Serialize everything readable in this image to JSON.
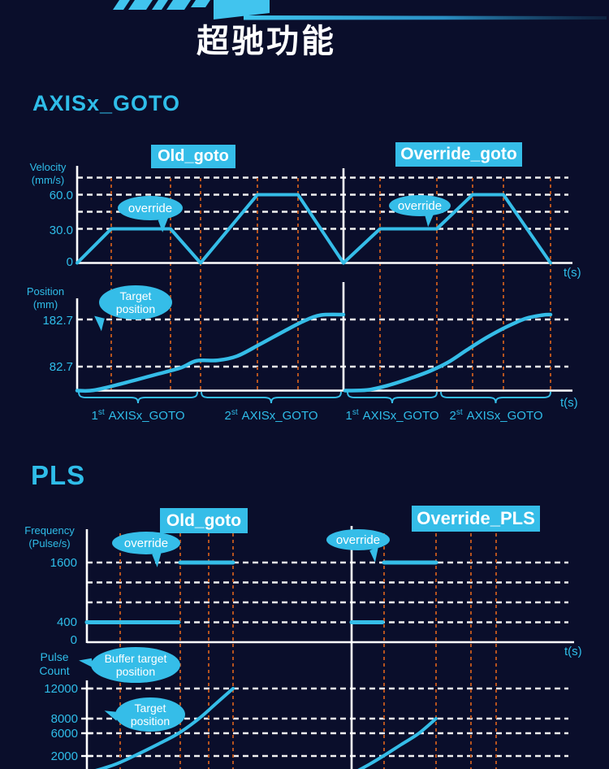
{
  "page": {
    "background": "#0a0e2b",
    "accent": "#2fbde9",
    "grid_white": "#f0f0f0",
    "event_orange": "#b5531f",
    "series_cyan": "#35bde8"
  },
  "header": {
    "title": "超驰功能"
  },
  "sections": {
    "axisx_goto": {
      "heading": "AXISx_GOTO",
      "badge_left": "Old_goto",
      "badge_right": "Override_goto"
    },
    "pls": {
      "heading": "PLS",
      "badge_left": "Old_goto",
      "badge_right": "Override_PLS"
    }
  },
  "chart_data": [
    {
      "id": "axisx-goto-velocity",
      "type": "line",
      "ylabel": "Velocity (mm/s)",
      "ylabel_lines": [
        "Velocity",
        "(mm/s)"
      ],
      "xlabel": "t(s)",
      "yticks": [
        "60.0",
        "30.0",
        "0"
      ],
      "ytick_values": [
        60,
        30,
        0
      ],
      "grid_values": [
        30,
        45,
        60,
        75
      ],
      "x_axis_note": "time axis unlabeled; t in drawing units",
      "series": [
        {
          "name": "Old_goto",
          "points": [
            [
              0,
              0
            ],
            [
              42,
              30
            ],
            [
              115,
              30
            ],
            [
              152,
              0
            ],
            [
              222,
              60
            ],
            [
              272,
              60
            ],
            [
              328,
              0
            ]
          ]
        },
        {
          "name": "Override_goto",
          "points": [
            [
              328,
              0
            ],
            [
              373,
              30
            ],
            [
              443,
              30
            ],
            [
              487,
              60
            ],
            [
              525,
              60
            ],
            [
              583,
              0
            ]
          ]
        }
      ],
      "event_lines": [
        42,
        115,
        152,
        222,
        272,
        373,
        443,
        487,
        525,
        583
      ],
      "annotations": [
        {
          "text": "override"
        },
        {
          "text": "override"
        }
      ]
    },
    {
      "id": "axisx-goto-position",
      "type": "line",
      "ylabel": "Position (mm)",
      "ylabel_lines": [
        "Position",
        "(mm)"
      ],
      "xlabel": "t(s)",
      "yticks": [
        "182.7",
        "82.7"
      ],
      "ytick_values": [
        182.7,
        82.7
      ],
      "grid_values": [
        82.7,
        182.7
      ],
      "series": [
        {
          "name": "Old_goto",
          "smooth": true,
          "points": [
            [
              0,
              0
            ],
            [
              20,
              1
            ],
            [
              55,
              24
            ],
            [
              95,
              54
            ],
            [
              127,
              78
            ],
            [
              147,
              95
            ],
            [
              173,
              96
            ],
            [
              197,
              105
            ],
            [
              225,
              130
            ],
            [
              255,
              158
            ],
            [
              280,
              180
            ],
            [
              300,
              192
            ],
            [
              328,
              193
            ]
          ]
        },
        {
          "name": "Override_goto",
          "smooth": true,
          "points": [
            [
              330,
              0
            ],
            [
              357,
              2
            ],
            [
              383,
              18
            ],
            [
              410,
              42
            ],
            [
              435,
              68
            ],
            [
              457,
              92
            ],
            [
              480,
              118
            ],
            [
              505,
              145
            ],
            [
              530,
              168
            ],
            [
              553,
              185
            ],
            [
              573,
              192
            ],
            [
              583,
              193
            ]
          ]
        }
      ],
      "annotations": [
        {
          "line1": "Target",
          "line2": "position"
        }
      ],
      "braces": [
        {
          "span": [
            2,
            148
          ],
          "label": {
            "num": "1",
            "sup": "st",
            "rest": "AXISx_GOTO"
          }
        },
        {
          "span": [
            153,
            325
          ],
          "label": {
            "num": "2",
            "sup": "st",
            "rest": "AXISx_GOTO"
          }
        },
        {
          "span": [
            333,
            443
          ],
          "label": {
            "num": "1",
            "sup": "st",
            "rest": "AXISx_GOTO"
          }
        },
        {
          "span": [
            448,
            583
          ],
          "label": {
            "num": "2",
            "sup": "st",
            "rest": "AXISx_GOTO"
          }
        }
      ]
    },
    {
      "id": "pls-frequency",
      "type": "line",
      "ylabel": "Frequency (Pulse/s)",
      "ylabel_lines": [
        "Frequency",
        "(Pulse/s)"
      ],
      "xlabel": "t(s)",
      "yticks": [
        "1600",
        "400",
        "0"
      ],
      "ytick_values": [
        1600,
        400,
        0
      ],
      "grid_values": [
        400,
        800,
        1200,
        1600
      ],
      "series": [
        {
          "name": "Old_goto",
          "segments": [
            [
              [
                0,
                400
              ],
              [
                113,
                400
              ]
            ],
            [
              [
                115,
                1600
              ],
              [
                180,
                1600
              ]
            ]
          ]
        },
        {
          "name": "Override_PLS",
          "segments": [
            [
              [
                326,
                400
              ],
              [
                364,
                400
              ]
            ],
            [
              [
                366,
                1600
              ],
              [
                430,
                1600
              ]
            ]
          ]
        }
      ],
      "event_lines": [
        41,
        115,
        150,
        180,
        366,
        430,
        473,
        504
      ],
      "annotations": [
        {
          "text": "override"
        },
        {
          "text": "override"
        }
      ]
    },
    {
      "id": "pls-pulse-count",
      "type": "line",
      "ylabel": "Pulse Count",
      "ylabel_lines": [
        "Pulse",
        "Count"
      ],
      "yticks": [
        "12000",
        "8000",
        "6000",
        "2000"
      ],
      "ytick_values": [
        12000,
        8000,
        6000,
        2000
      ],
      "grid_values": [
        2000,
        6000,
        8000,
        12000
      ],
      "series": [
        {
          "name": "Old_goto",
          "smooth": true,
          "points": [
            [
              5,
              -300
            ],
            [
              33,
              700
            ],
            [
              58,
              2000
            ],
            [
              88,
              4100
            ],
            [
              113,
              6000
            ],
            [
              138,
              8000
            ],
            [
              159,
              10000
            ],
            [
              180,
              12000
            ]
          ]
        },
        {
          "name": "Override_PLS",
          "smooth": true,
          "points": [
            [
              331,
              -300
            ],
            [
              348,
              800
            ],
            [
              365,
              2000
            ],
            [
              387,
              4000
            ],
            [
              409,
              6000
            ],
            [
              430,
              8000
            ]
          ]
        }
      ],
      "annotations": [
        {
          "line1": "Buffer target",
          "line2": "position"
        },
        {
          "line1": "Target",
          "line2": "position"
        }
      ]
    }
  ]
}
